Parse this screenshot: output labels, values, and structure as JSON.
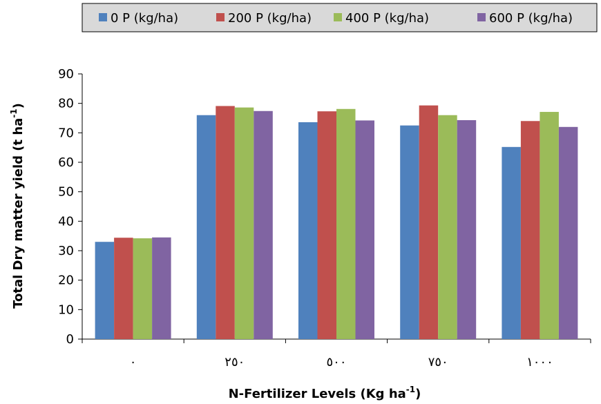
{
  "chart_data": {
    "type": "bar",
    "categories": [
      "٠",
      "٢٥٠",
      "٥٠٠",
      "٧٥٠",
      "١٠٠٠"
    ],
    "series": [
      {
        "name": "0 P (kg/ha)",
        "color": "#4f81bd",
        "values": [
          33.0,
          76.0,
          73.6,
          72.5,
          65.2
        ]
      },
      {
        "name": "200 P (kg/ha)",
        "color": "#c0504d",
        "values": [
          34.4,
          79.1,
          77.3,
          79.3,
          74.0
        ]
      },
      {
        "name": "400 P (kg/ha)",
        "color": "#9bbb59",
        "values": [
          34.2,
          78.6,
          78.1,
          76.0,
          77.1
        ]
      },
      {
        "name": "600 P (kg/ha)",
        "color": "#8064a2",
        "values": [
          34.5,
          77.4,
          74.2,
          74.3,
          72.0
        ]
      }
    ],
    "title": "",
    "xlabel_main": "N-Fertilizer  Levels (Kg ha",
    "xlabel_sup": "-1",
    "xlabel_end": ")",
    "ylabel_main": "Total Dry matter yield (t ha",
    "ylabel_sup": "-1",
    "ylabel_end": ")",
    "ylim": [
      0,
      90
    ],
    "yticks": [
      "0",
      "10",
      "20",
      "30",
      "40",
      "50",
      "60",
      "70",
      "80",
      "90"
    ],
    "grid": false,
    "legend_position": "top"
  }
}
